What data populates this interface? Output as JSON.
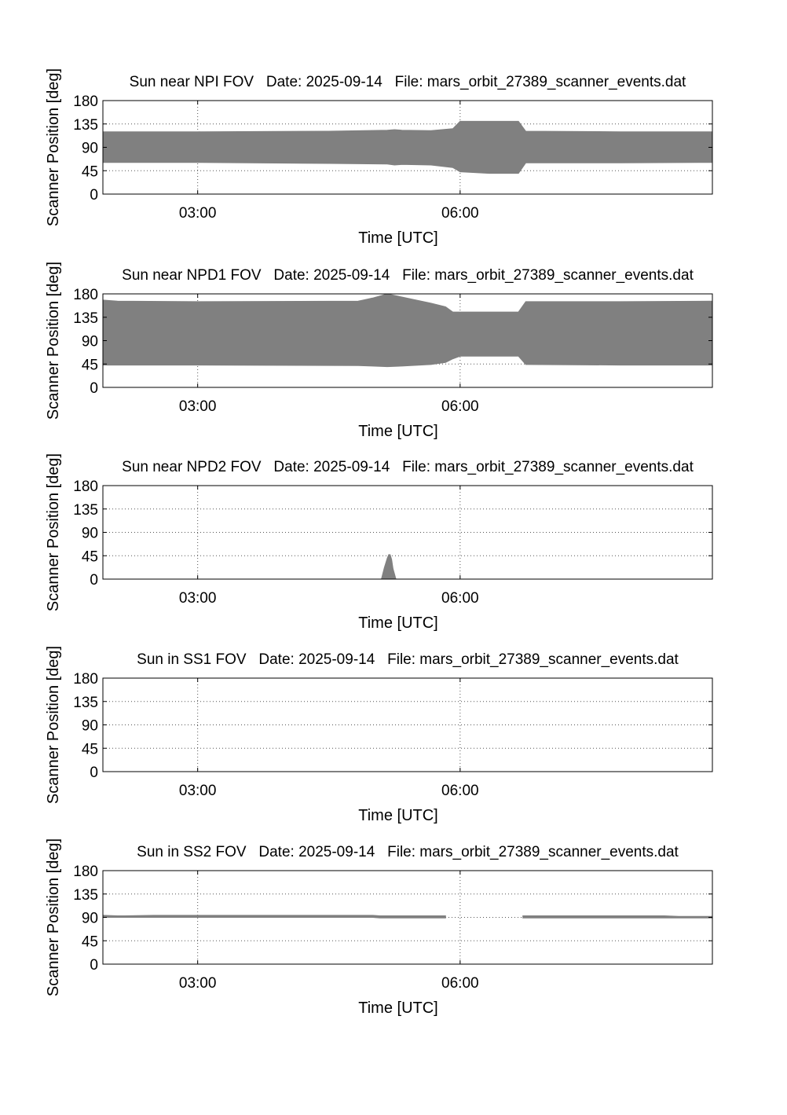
{
  "page": {
    "background": "#ffffff"
  },
  "style": {
    "fill_color": "#808080",
    "axis_color": "#000000",
    "grid_color": "#555555"
  },
  "chart_data": [
    {
      "type": "area",
      "title": "Sun near NPI FOV   Date: 2025-09-14   File: mars_orbit_27389_scanner_events.dat",
      "xlabel": "Time [UTC]",
      "ylabel": "Scanner Position [deg]",
      "xlim": [
        "01:55",
        "08:53"
      ],
      "ylim": [
        0,
        180
      ],
      "x_ticks": [
        "03:00",
        "06:00"
      ],
      "y_ticks": [
        0,
        45,
        90,
        135,
        180
      ],
      "grid": true,
      "series": [
        {
          "type": "band",
          "x": [
            "01:55",
            "03:00",
            "04:30",
            "05:10",
            "05:15",
            "05:20",
            "05:40",
            "05:55",
            "06:00",
            "06:20",
            "06:40",
            "06:45",
            "07:50",
            "08:53"
          ],
          "upper": [
            120,
            120,
            121,
            123,
            124,
            123,
            122,
            126,
            140,
            140,
            140,
            121,
            120,
            120
          ],
          "lower": [
            61,
            61,
            59,
            58,
            56,
            57,
            56,
            51,
            43,
            40,
            40,
            60,
            60,
            61
          ]
        }
      ]
    },
    {
      "type": "area",
      "title": "Sun near NPD1 FOV   Date: 2025-09-14   File: mars_orbit_27389_scanner_events.dat",
      "xlabel": "Time [UTC]",
      "ylabel": "Scanner Position [deg]",
      "xlim": [
        "01:55",
        "08:53"
      ],
      "ylim": [
        0,
        180
      ],
      "x_ticks": [
        "03:00",
        "06:00"
      ],
      "y_ticks": [
        0,
        45,
        90,
        135,
        180
      ],
      "grid": true,
      "series": [
        {
          "type": "band",
          "x": [
            "01:55",
            "02:05",
            "03:00",
            "04:50",
            "05:00",
            "05:10",
            "05:20",
            "05:40",
            "05:50",
            "05:55",
            "06:00",
            "06:40",
            "06:45",
            "07:50",
            "08:53"
          ],
          "upper": [
            168,
            166,
            165,
            166,
            172,
            180,
            174,
            162,
            155,
            145,
            145,
            145,
            165,
            165,
            166
          ],
          "lower": [
            43,
            43,
            43,
            42,
            41,
            40,
            41,
            44,
            48,
            55,
            60,
            60,
            44,
            43,
            43
          ]
        }
      ]
    },
    {
      "type": "area",
      "title": "Sun near NPD2 FOV   Date: 2025-09-14   File: mars_orbit_27389_scanner_events.dat",
      "xlabel": "Time [UTC]",
      "ylabel": "Scanner Position [deg]",
      "xlim": [
        "01:55",
        "08:53"
      ],
      "ylim": [
        0,
        180
      ],
      "x_ticks": [
        "03:00",
        "06:00"
      ],
      "y_ticks": [
        0,
        45,
        90,
        135,
        180
      ],
      "grid": true,
      "series": [
        {
          "type": "band",
          "x": [
            "05:06",
            "05:08",
            "05:10",
            "05:11",
            "05:12",
            "05:13",
            "05:14",
            "05:16"
          ],
          "upper": [
            0,
            22,
            40,
            47,
            47,
            38,
            20,
            0
          ],
          "lower": [
            0,
            0,
            0,
            0,
            0,
            0,
            0,
            0
          ]
        }
      ]
    },
    {
      "type": "area",
      "title": "Sun in SS1 FOV   Date: 2025-09-14   File: mars_orbit_27389_scanner_events.dat",
      "xlabel": "Time [UTC]",
      "ylabel": "Scanner Position [deg]",
      "xlim": [
        "01:55",
        "08:53"
      ],
      "ylim": [
        0,
        180
      ],
      "x_ticks": [
        "03:00",
        "06:00"
      ],
      "y_ticks": [
        0,
        45,
        90,
        135,
        180
      ],
      "grid": true,
      "series": []
    },
    {
      "type": "area",
      "title": "Sun in SS2 FOV   Date: 2025-09-14   File: mars_orbit_27389_scanner_events.dat",
      "xlabel": "Time [UTC]",
      "ylabel": "Scanner Position [deg]",
      "xlim": [
        "01:55",
        "08:53"
      ],
      "ylim": [
        0,
        180
      ],
      "x_ticks": [
        "03:00",
        "06:00"
      ],
      "y_ticks": [
        0,
        45,
        90,
        135,
        180
      ],
      "grid": true,
      "series": [
        {
          "type": "band",
          "x": [
            "01:55",
            "02:05",
            "02:10",
            "02:30",
            "03:00",
            "05:00",
            "05:05",
            "05:50"
          ],
          "upper": [
            94,
            93,
            93,
            94,
            94,
            94,
            93,
            93
          ],
          "lower": [
            90,
            90,
            90,
            90,
            90,
            90,
            89,
            89
          ]
        },
        {
          "type": "band",
          "x": [
            "06:43",
            "07:00",
            "07:50",
            "08:20",
            "08:30",
            "08:53"
          ],
          "upper": [
            93,
            93,
            93,
            93,
            92,
            92
          ],
          "lower": [
            89,
            89,
            89,
            89,
            89,
            89
          ]
        }
      ]
    }
  ]
}
